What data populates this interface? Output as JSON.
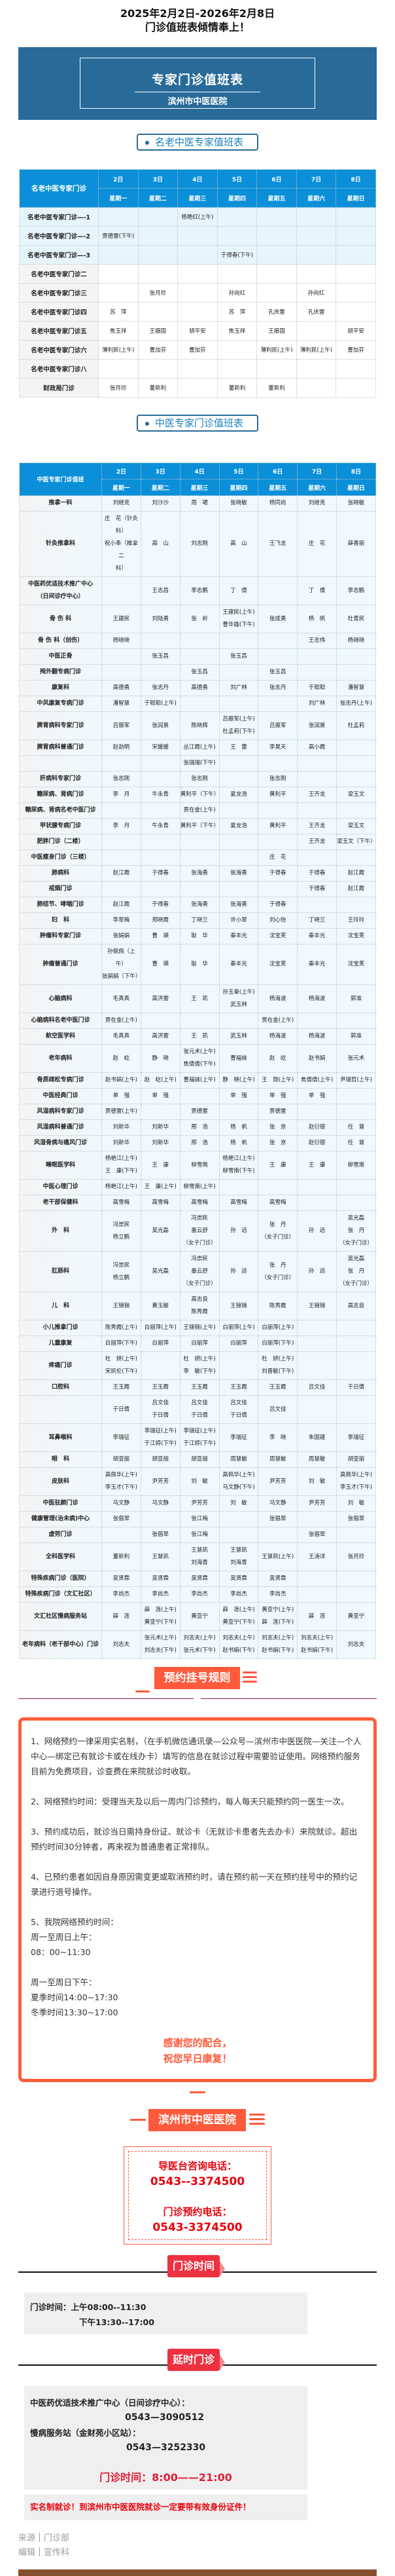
{
  "header": {
    "line1": "2025年2月2日-2026年2月8日",
    "line2": "门诊值班表倾情奉上！"
  },
  "banner": {
    "title": "专家门诊值班表",
    "subtitle": "滨州市中医医院"
  },
  "colors": {
    "banner": "#286a98",
    "table_header": "#0a8fd8",
    "accent_orange": "#ff5a3c",
    "tag_red": "#ee3140",
    "phone_red": "#e8000b",
    "footer_bar": "#84512c"
  },
  "days": [
    {
      "date": "2日",
      "weekday": "星期一"
    },
    {
      "date": "3日",
      "weekday": "星期二"
    },
    {
      "date": "4日",
      "weekday": "星期三"
    },
    {
      "date": "5日",
      "weekday": "星期四"
    },
    {
      "date": "6日",
      "weekday": "星期五"
    },
    {
      "date": "7日",
      "weekday": "星期六"
    },
    {
      "date": "8日",
      "weekday": "星期日"
    }
  ],
  "table1": {
    "tag": "名老中医专家值班表",
    "corner": "名老中医专家门诊",
    "rows": [
      {
        "label": "名老中医专家门诊—-1",
        "cells": [
          "",
          "",
          "杨艳红(上午)",
          "",
          "",
          "",
          ""
        ]
      },
      {
        "label": "名老中医专家门诊—-2",
        "cells": [
          "贾德雷(下午)",
          "",
          "",
          "",
          "",
          "",
          ""
        ]
      },
      {
        "label": "名老中医专家门诊—-3",
        "cells": [
          "",
          "",
          "",
          "于得春(下午)",
          "",
          "",
          ""
        ]
      },
      {
        "label": "名老中医专家门诊二",
        "cells": [
          "",
          "",
          "",
          "",
          "",
          "",
          ""
        ]
      },
      {
        "label": "名老中医专家门诊三",
        "cells": [
          "",
          "张月珍",
          "",
          "孙向红",
          "",
          "孙向红",
          ""
        ]
      },
      {
        "label": "名老中医专家门诊四",
        "cells": [
          "苏　萍",
          "",
          "",
          "苏　萍",
          "孔庆雷",
          "孔庆雷",
          ""
        ]
      },
      {
        "label": "名老中医专家门诊五",
        "cells": [
          "焦玉祥",
          "王振国",
          "胡平安",
          "焦玉祥",
          "王振国",
          "",
          "胡平安"
        ]
      },
      {
        "label": "名老中医专家门诊六",
        "cells": [
          "薄利民(上午)",
          "曹加芬",
          "曹加芬",
          "",
          "薄利民(上午)",
          "薄利民(上午)",
          "曹加芬"
        ]
      },
      {
        "label": "名老中医专家门诊八",
        "cells": [
          "",
          "",
          "",
          "",
          "",
          "",
          ""
        ]
      },
      {
        "label": "财政局门诊",
        "cells": [
          "张月珍",
          "董新利",
          "",
          "董新利",
          "董新利",
          "",
          ""
        ]
      }
    ]
  },
  "table2": {
    "tag": "中医专家门诊值班表",
    "corner": "中医专家门诊值班",
    "rows": [
      {
        "label": "推拿一科",
        "cells": [
          "刘继克",
          "刘沙沙",
          "周　珺",
          "张晓敏",
          "杨同尚",
          "刘继克",
          "张晓敏"
        ]
      },
      {
        "label": "针灸推拿科",
        "cells": [
          "庄　花（针灸\n科）\n祝小奉（推拿二\n科）",
          "高　山",
          "刘志刚",
          "高　山",
          "王飞龙",
          "庄　花",
          "薛香丽"
        ]
      },
      {
        "label": "中医药优适技术推广中心\n（日间诊疗中心）",
        "cells": [
          "",
          "王志昌",
          "李志鹏",
          "丁　倩",
          "",
          "丁　倩",
          "李志鹏"
        ]
      },
      {
        "label": "骨 伤 科",
        "cells": [
          "王建民",
          "刘陆勇",
          "张　岭",
          "王建民(上午)\n曹华雄(下午)",
          "张成勇",
          "杨　帆",
          "杜青民"
        ]
      },
      {
        "label": "骨 伤 科（创伤）",
        "cells": [
          "杨晓晓",
          "",
          "",
          "",
          "",
          "王志伟",
          "杨晓晓"
        ]
      },
      {
        "label": "中医正骨",
        "cells": [
          "",
          "张玉昌",
          "",
          "张玉昌",
          "",
          "",
          ""
        ]
      },
      {
        "label": "拇外翻专病门诊",
        "cells": [
          "",
          "",
          "张玉昌",
          "",
          "张玉昌",
          "",
          ""
        ]
      },
      {
        "label": "康复科",
        "cells": [
          "高德勇",
          "张志丹",
          "高德勇",
          "刘广林",
          "张志丹",
          "于聪聪",
          "潘智慧"
        ]
      },
      {
        "label": "中风康复专病门诊",
        "cells": [
          "潘智慧",
          "于聪聪(上午)",
          "",
          "",
          "",
          "刘广林",
          "张志丹(上午)"
        ]
      },
      {
        "label": "脾胃病科专家门诊",
        "cells": [
          "吕振军",
          "张润景",
          "陈晓辉",
          "吕振军(上午)\n杜孟莉(下午)",
          "吕振军",
          "张润景",
          "杜孟莉"
        ]
      },
      {
        "label": "脾胃病科普通门诊",
        "cells": [
          "赵劲明",
          "宋媛媛",
          "丛江霞(上午)",
          "王　蕾",
          "李昊天",
          "高小霞",
          ""
        ]
      },
      {
        "label": "",
        "cells": [
          "",
          "",
          "张瑞瑞(下午)",
          "",
          "",
          "",
          ""
        ]
      },
      {
        "label": "肝病科专家门诊",
        "cells": [
          "张志刚",
          "",
          "张志刚",
          "",
          "张志刚",
          "",
          ""
        ]
      },
      {
        "label": "糖尿病、肾病门诊",
        "cells": [
          "李　月",
          "牛永青",
          "黄利平（下午）",
          "夏龙浩",
          "黄利平",
          "王齐龙",
          "梁玉文"
        ]
      },
      {
        "label": "糖尿病、肾病名老中医门诊",
        "cells": [
          "",
          "",
          "贾在金(上午)",
          "",
          "",
          "",
          ""
        ]
      },
      {
        "label": "甲状腺专病门诊",
        "cells": [
          "李　月",
          "牛永青",
          "黄利平（下午）",
          "夏龙浩",
          "黄利平",
          "王齐龙",
          "梁玉文"
        ]
      },
      {
        "label": "肥胖门诊（二楼）",
        "cells": [
          "",
          "",
          "",
          "",
          "",
          "王齐龙",
          "梁玉文（下午）"
        ]
      },
      {
        "label": "中医瘦身门诊（三楼）",
        "cells": [
          "",
          "",
          "",
          "",
          "庄　花",
          "",
          ""
        ]
      },
      {
        "label": "肺病科",
        "cells": [
          "赵江霞",
          "于得春",
          "张海勇",
          "张海勇",
          "于得春",
          "于得春",
          "赵江霞"
        ]
      },
      {
        "label": "戒烟门诊",
        "cells": [
          "",
          "",
          "",
          "",
          "",
          "于得春",
          "赵江霞"
        ]
      },
      {
        "label": "肺结节、哮喘门诊",
        "cells": [
          "赵江霞",
          "于得春",
          "张海勇",
          "张海勇",
          "于得春",
          "",
          ""
        ]
      },
      {
        "label": "妇　科",
        "cells": [
          "李翠梅",
          "郑晓霞",
          "丁晓兰",
          "许小翠",
          "刘心怡",
          "丁晓兰",
          "王玲玲"
        ]
      },
      {
        "label": "肿瘤科专家门诊",
        "cells": [
          "张娟娟",
          "曹　瑛",
          "耿　华",
          "秦丰光",
          "沈宝芙",
          "秦丰光",
          "沈宝芙"
        ]
      },
      {
        "label": "肿瘤普通门诊",
        "cells": [
          "孙佩佩（上午）\n张娟娟（下午）",
          "曹　瑛",
          "耿　华",
          "秦丰光",
          "沈宝芙",
          "秦丰光",
          "沈宝芙"
        ]
      },
      {
        "label": "心脑病科",
        "cells": [
          "毛真真",
          "高洪雷",
          "王　凯",
          "孙玉章(上午)\n武玉林",
          "杨海波",
          "杨海波",
          "郭准"
        ]
      },
      {
        "label": "心脑病科名老中医门诊",
        "cells": [
          "贾在金(上午)",
          "",
          "",
          "",
          "贾在金(上午)",
          "",
          ""
        ]
      },
      {
        "label": "航空医学科",
        "cells": [
          "毛真真",
          "高洪雷",
          "王　凯",
          "武玉林",
          "杨海波",
          "杨海波",
          "郭准"
        ]
      },
      {
        "label": "老年病科",
        "cells": [
          "赵　屹",
          "静　晓",
          "张元术(上午)\n焦倩倩(下午)",
          "曹福妹",
          "赵　屹",
          "赵书娟",
          "张元术"
        ]
      },
      {
        "label": "骨质疏松专病门诊",
        "cells": [
          "赵书娟(上午)",
          "赵　屹(上午)",
          "曹福妹(上午)",
          "静　晓(上午)",
          "王　勋(上午)",
          "焦倩倩(上午)",
          "尹瑞哲(上午)"
        ]
      },
      {
        "label": "中医经典门诊",
        "cells": [
          "单　强",
          "单　强",
          "",
          "单　强",
          "单　强",
          "单　强",
          ""
        ]
      },
      {
        "label": "风湿病科专家门诊",
        "cells": [
          "贾德雷(上午)",
          "",
          "贾德雷",
          "",
          "贾德雷",
          "",
          ""
        ]
      },
      {
        "label": "风湿病科普通门诊",
        "cells": [
          "刘新华",
          "刘新华",
          "邢　浩",
          "杨　帆",
          "张　京",
          "赵衍银",
          "任　慧"
        ]
      },
      {
        "label": "风湿骨病与痛风门诊",
        "cells": [
          "刘新华",
          "刘新华",
          "邢　浩",
          "杨　帆",
          "张　京",
          "赵衍银",
          "任　慧"
        ]
      },
      {
        "label": "睡眠医学科",
        "cells": [
          "杨艳江(上午)\n王　康(下午)",
          "王　康",
          "柳雪南",
          "杨艳江(上午)\n柳雪南(下午)",
          "王　康",
          "王　康",
          "柳雪南"
        ]
      },
      {
        "label": "中医心理门诊",
        "cells": [
          "杨艳江(上午)",
          "王　康(上午)",
          "柳雪南(上午)",
          "",
          "",
          "",
          ""
        ]
      },
      {
        "label": "老干部保健科",
        "cells": [
          "高雪梅",
          "高雪梅",
          "高雪梅",
          "高雪梅",
          "高雪梅",
          "",
          ""
        ]
      },
      {
        "label": "外　科",
        "cells": [
          "冯崇民\n杨立鹏",
          "吴光磊",
          "冯崇民\n墨云舒\n（女子门诊）",
          "孙　远",
          "张　丹\n（女子门诊）",
          "孙　远",
          "吴光磊\n张　丹\n（女子门诊）"
        ]
      },
      {
        "label": "肛肠科",
        "cells": [
          "冯崇民\n杨立鹏",
          "吴光磊",
          "冯崇民\n墨云舒\n（女子门诊）",
          "孙　远",
          "张　丹\n（女子门诊）",
          "孙　远",
          "吴光磊\n张　丹\n（女子门诊）"
        ]
      },
      {
        "label": "儿　科",
        "cells": [
          "王锦锦",
          "黄玉敏",
          "高志良\n陈秀霞",
          "王锦锦",
          "陈秀霞",
          "王锦锦",
          "高志良"
        ]
      },
      {
        "label": "小儿推拿门诊",
        "cells": [
          "陈秀霞(上午)",
          "白丽萍(上午)",
          "王锦锦(上午)",
          "白丽萍(上午)",
          "白丽萍(上午)",
          "",
          ""
        ]
      },
      {
        "label": "儿童康复",
        "cells": [
          "白丽萍(下午)",
          "白丽萍",
          "白丽萍",
          "白丽萍",
          "白丽萍(下午)",
          "",
          ""
        ]
      },
      {
        "label": "疼痛门诊",
        "cells": [
          "杜　妍(上午)\n宋凯伦(下午)",
          "",
          "杜　妍(上午)\n李　敏(下午)",
          "",
          "杜　妍(上午)\n刘晋敏(下午)",
          "",
          ""
        ]
      },
      {
        "label": "口腔科",
        "cells": [
          "王玉霞",
          "王玉霞",
          "王玉霞",
          "王玉霞",
          "王玉霞",
          "吕文佳",
          "于日倩"
        ]
      },
      {
        "label": "",
        "cells": [
          "于日倩",
          "吕文佳\n于日倩",
          "吕文佳\n于日倩",
          "吕文佳\n于日倩",
          "吕文佳",
          "",
          ""
        ]
      },
      {
        "label": "耳鼻喉科",
        "cells": [
          "李瑞征",
          "李瑞征(上午)\n于江婷(下午)",
          "李瑞征(上午)\n于江婷(下午)",
          "李瑞征",
          "李　晓",
          "朱国建",
          "李瑞征"
        ]
      },
      {
        "label": "眼　科",
        "cells": [
          "胡亚丽",
          "胡亚丽",
          "胡亚丽",
          "周慧敏",
          "周慧敏",
          "周慧敏",
          "胡亚丽"
        ]
      },
      {
        "label": "皮肤科",
        "cells": [
          "高佩华(上午)\n李玉才(下午)",
          "尹芳芳",
          "刘　敏",
          "高佩华(上午)\n马文静(下午)",
          "尹芳芳",
          "刘　敏",
          "高佩华(上午)\n李玉才(下午)"
        ]
      },
      {
        "label": "中医驻颜门诊",
        "cells": [
          "马文静",
          "马文静",
          "尹芳芳",
          "刘　敏",
          "马文静",
          "尹芳芳",
          "刘　敏"
        ]
      },
      {
        "label": "健康管理(治未病)中心",
        "cells": [
          "张倡翠",
          "",
          "张江梅",
          "",
          "张倡翠",
          "",
          "张倡翠"
        ]
      },
      {
        "label": "虚劳门诊",
        "cells": [
          "",
          "张倡翠",
          "张江梅",
          "",
          "",
          "张倡翠",
          ""
        ]
      },
      {
        "label": "全科医学科",
        "cells": [
          "董新利",
          "王慧凯",
          "王慧凯\n刘海青",
          "王慧凯\n刘海青",
          "王慧凯(上午)",
          "王涛洋",
          "张月珍"
        ]
      },
      {
        "label": "特殊疾病门诊（医院）",
        "cells": [
          "吴贤霖",
          "吴贤霖",
          "吴贤霖",
          "吴贤霖",
          "吴贤霖",
          "",
          ""
        ]
      },
      {
        "label": "特殊疾病门诊（文汇社区）",
        "cells": [
          "李尚杰",
          "李尚杰",
          "李尚杰",
          "李尚杰",
          "李尚杰",
          "",
          ""
        ]
      },
      {
        "label": "文汇社区慢病服务站",
        "cells": [
          "薛　莲",
          "薛　莲(上午)\n黄亚宁(下午)",
          "黄亚宁",
          "薛　莲(上午)\n黄亚宁(下午)",
          "黄亚宁(上午)\n薛　莲(下午)",
          "薛　莲",
          "黄亚宁"
        ]
      },
      {
        "label": "老年病科（老干部中心）门诊",
        "cells": [
          "刘志夫",
          "张元术(上午)\n刘志夫(下午)",
          "刘志夫(上午)\n张元术(下午)",
          "刘志夫(上午)\n赵书娟(下午)",
          "刘志夫(上午)\n赵书娟(下午)",
          "刘志夫(上午)\n赵书娟(下午)",
          "刘志夫"
        ]
      }
    ]
  },
  "rules": {
    "heading": "预约挂号规则",
    "items": [
      "1、网络预约一律采用实名制，（在手机微信通讯录—公众号—滨州市中医医院—关注—个人中心—绑定已有就诊卡或在线办卡）填写的信息在就诊过程中需要验证使用。网络预约服务目前为免费项目，诊查费在来院就诊时收取。",
      "2、网络预约时间：受理当天及以后一周内门诊预约，每人每天只能预约同一医生一次。",
      "3、预约成功后，就诊当日需持身份证、就诊卡（无就诊卡患者先去办卡）来院就诊。超出预约时间30分钟者，再来视为普通患者正常排队。",
      "4、已预约患者如因自身原因需变更或取消预约时，请在预约前一天在预约挂号中的预约记录进行退号操作。"
    ],
    "item5_title": "5、我院网络预约时间：",
    "am_label": "周一至周日上午：",
    "am_time": "08：00~11:30",
    "pm_label": "周一至周日下午：",
    "summer": "夏季时间14:00~17:30",
    "winter": "冬季时间13:30~17:00",
    "thanks1": "感谢您的配合，",
    "thanks2": "祝您早日康复！"
  },
  "hospital": {
    "heading": "滨州市中医医院",
    "guide_label": "导医台咨询电话：",
    "guide_phone": "0543--3374500",
    "appt_label": "门诊预约电话：",
    "appt_phone": "0543-3374500"
  },
  "clinic_hours": {
    "tag": "门诊时间",
    "line1": "门诊时间：上午08:00--11:30",
    "line2": "下午13:30--17:00"
  },
  "extended": {
    "tag": "延时门诊",
    "center1": "中医药优适技术推广中心（日间诊疗中心）：",
    "phone1": "0543—3090512",
    "center2": "慢病服务站（金财苑小区站）：",
    "phone2": "0543—3252330",
    "hours": "门诊时间：8:00——21:00",
    "notice": "实名制就诊！到滨州市中医医院就诊一定要带有效身份证件！"
  },
  "footer": {
    "source_label": "来源",
    "source": "门诊部",
    "editor_label": "编辑",
    "editor": "宣传科"
  }
}
